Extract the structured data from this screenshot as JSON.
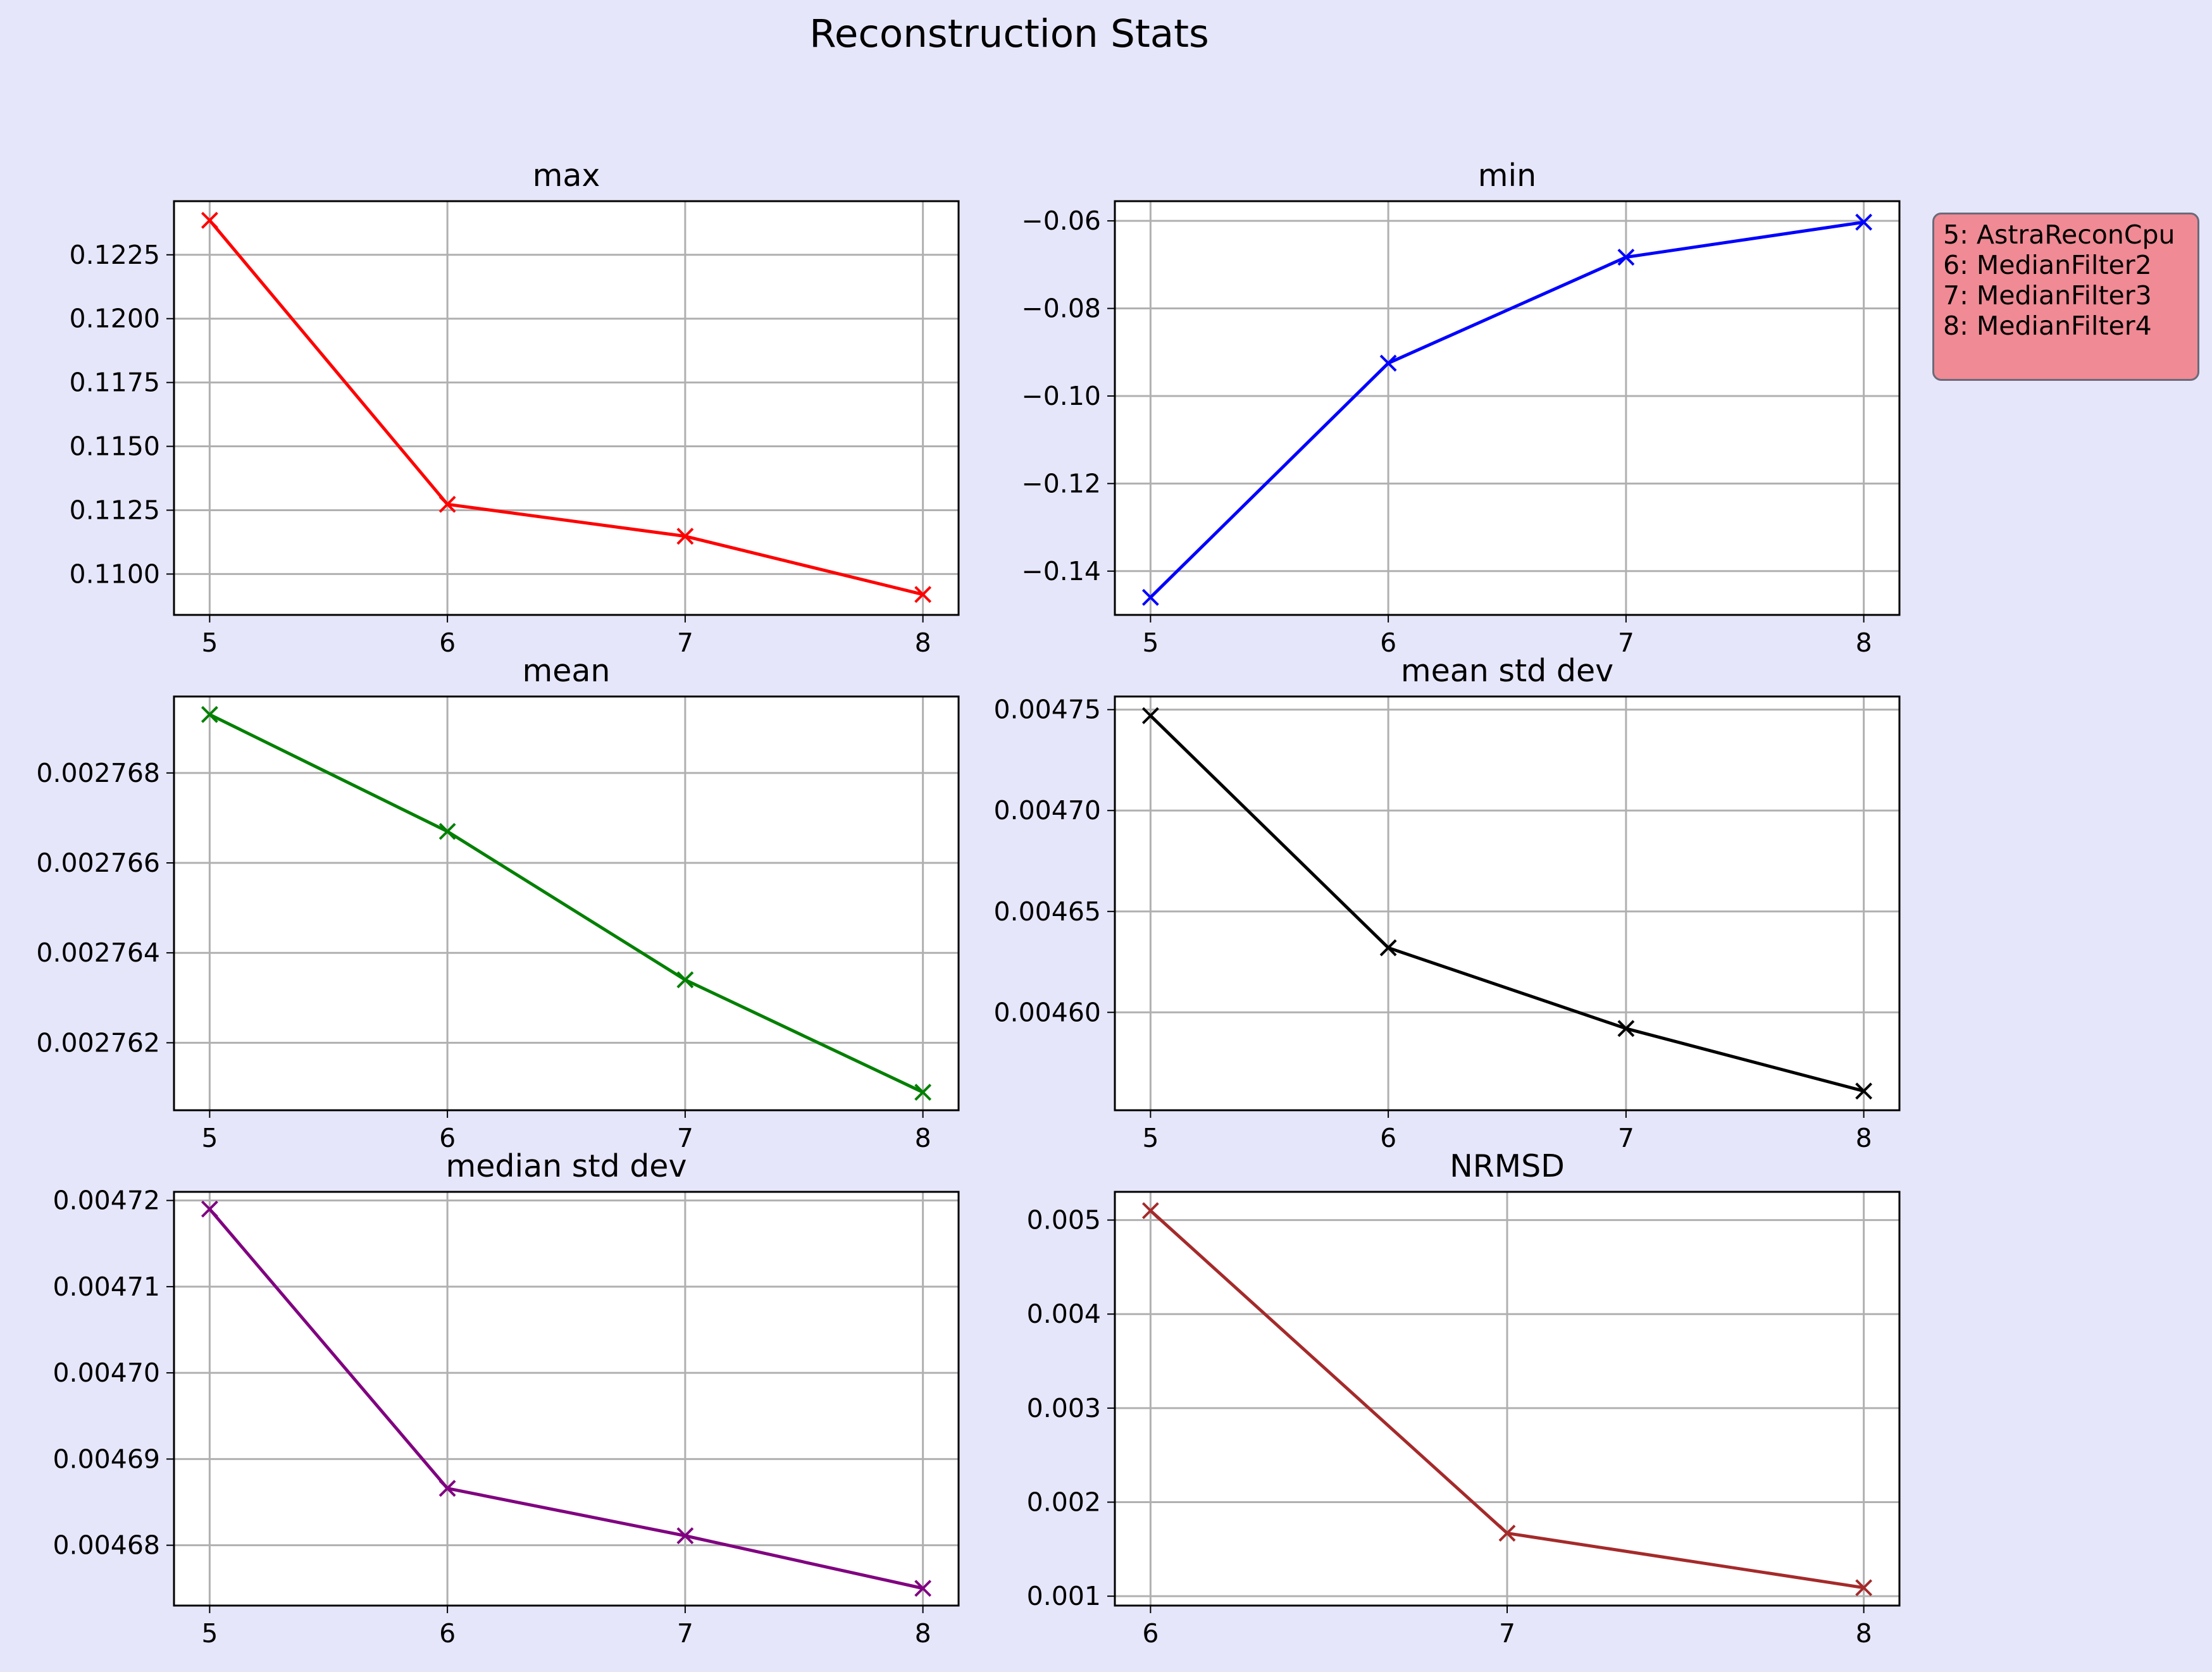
{
  "figure": {
    "title": "Reconstruction Stats",
    "background": "#e6e6fa"
  },
  "legend": {
    "lines": [
      "5: AstraReconCpu",
      "6: MedianFilter2",
      "7: MedianFilter3",
      "8: MedianFilter4"
    ],
    "background": "#f08a94",
    "placement": "right of top-right subplot"
  },
  "chart_data": [
    {
      "type": "line",
      "title": "max",
      "color": "#ff0000",
      "marker": "x",
      "grid": true,
      "x": [
        5,
        6,
        7,
        8
      ],
      "y": [
        0.12385,
        0.11273,
        0.11148,
        0.1092
      ],
      "xlim": [
        4.85,
        8.15
      ],
      "ylim": [
        0.1084,
        0.1246
      ],
      "xticks": [
        "5",
        "6",
        "7",
        "8"
      ],
      "yticks": [
        0.11,
        0.1125,
        0.115,
        0.1175,
        0.12,
        0.1225
      ],
      "ytick_labels": [
        "0.1100",
        "0.1125",
        "0.1150",
        "0.1175",
        "0.1200",
        "0.1225"
      ]
    },
    {
      "type": "line",
      "title": "min",
      "color": "#0000ff",
      "marker": "x",
      "grid": true,
      "x": [
        5,
        6,
        7,
        8
      ],
      "y": [
        -0.146,
        -0.0925,
        -0.0683,
        -0.0603
      ],
      "xlim": [
        4.85,
        8.15
      ],
      "ylim": [
        -0.15,
        -0.0555
      ],
      "xticks": [
        "5",
        "6",
        "7",
        "8"
      ],
      "yticks": [
        -0.14,
        -0.12,
        -0.1,
        -0.08,
        -0.06
      ],
      "ytick_labels": [
        "−0.14",
        "−0.12",
        "−0.10",
        "−0.08",
        "−0.06"
      ]
    },
    {
      "type": "line",
      "title": "mean",
      "color": "#008000",
      "marker": "x",
      "grid": true,
      "x": [
        5,
        6,
        7,
        8
      ],
      "y": [
        0.0027693,
        0.0027667,
        0.0027634,
        0.0027609
      ],
      "xlim": [
        4.85,
        8.15
      ],
      "ylim": [
        0.0027605,
        0.0027697
      ],
      "xticks": [
        "5",
        "6",
        "7",
        "8"
      ],
      "yticks": [
        0.002762,
        0.002764,
        0.002766,
        0.002768
      ],
      "ytick_labels": [
        "0.002762",
        "0.002764",
        "0.002766",
        "0.002768"
      ]
    },
    {
      "type": "line",
      "title": "mean std dev",
      "color": "#000000",
      "marker": "x",
      "grid": true,
      "x": [
        5,
        6,
        7,
        8
      ],
      "y": [
        0.004747,
        0.004632,
        0.004592,
        0.004561
      ],
      "xlim": [
        4.85,
        8.15
      ],
      "ylim": [
        0.0045515,
        0.0047565
      ],
      "xticks": [
        "5",
        "6",
        "7",
        "8"
      ],
      "yticks": [
        0.0046,
        0.00465,
        0.0047,
        0.00475
      ],
      "ytick_labels": [
        "0.00460",
        "0.00465",
        "0.00470",
        "0.00475"
      ]
    },
    {
      "type": "line",
      "title": "median std dev",
      "color": "#800080",
      "marker": "x",
      "grid": true,
      "x": [
        5,
        6,
        7,
        8
      ],
      "y": [
        0.004719,
        0.0046866,
        0.0046811,
        0.004675
      ],
      "xlim": [
        4.85,
        8.15
      ],
      "ylim": [
        0.004673,
        0.004721
      ],
      "xticks": [
        "5",
        "6",
        "7",
        "8"
      ],
      "yticks": [
        0.00468,
        0.00469,
        0.0047,
        0.00471,
        0.00472
      ],
      "ytick_labels": [
        "0.00468",
        "0.00469",
        "0.00470",
        "0.00471",
        "0.00472"
      ]
    },
    {
      "type": "line",
      "title": "NRMSD",
      "color": "#a52a2a",
      "marker": "x",
      "grid": true,
      "x": [
        6,
        7,
        8
      ],
      "y": [
        0.0051,
        0.00167,
        0.00109
      ],
      "xlim": [
        5.9,
        8.1
      ],
      "ylim": [
        0.0009,
        0.0053
      ],
      "xticks": [
        "6",
        "7",
        "8"
      ],
      "yticks": [
        0.001,
        0.002,
        0.003,
        0.004,
        0.005
      ],
      "ytick_labels": [
        "0.001",
        "0.002",
        "0.003",
        "0.004",
        "0.005"
      ]
    }
  ]
}
